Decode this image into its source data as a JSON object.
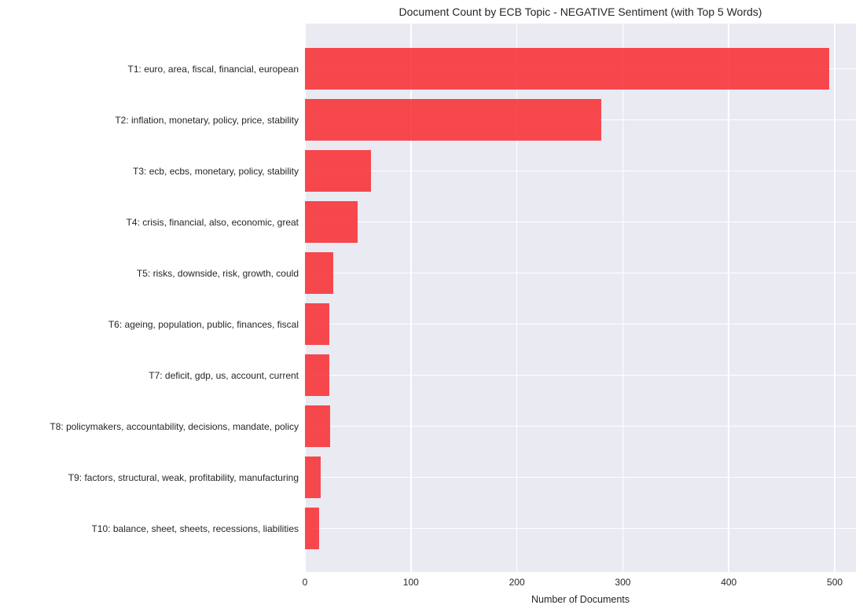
{
  "chart_data": {
    "type": "bar",
    "orientation": "horizontal",
    "title": "Document Count by ECB Topic - NEGATIVE Sentiment (with Top 5 Words)",
    "xlabel": "Number of Documents",
    "ylabel": "",
    "categories": [
      "T1: euro, area, fiscal, financial, european",
      "T2: inflation, monetary, policy, price, stability",
      "T3: ecb, ecbs, monetary, policy, stability",
      "T4: crisis, financial, also, economic, great",
      "T5: risks, downside, risk, growth, could",
      "T6: ageing, population, public, finances, fiscal",
      "T7: deficit, gdp, us, account, current",
      "T8: policymakers, accountability, decisions, mandate, policy",
      "T9: factors, structural, weak, profitability, manufacturing",
      "T10: balance, sheet, sheets, recessions, liabilities"
    ],
    "values": [
      495,
      280,
      62,
      50,
      27,
      23,
      23,
      24,
      15,
      13
    ],
    "xticks": [
      0,
      100,
      200,
      300,
      400,
      500
    ],
    "xlim": [
      0,
      520
    ],
    "grid": true,
    "legend": false,
    "style": "seaborn-darkgrid",
    "plot_bg": "#eaeaf2",
    "grid_color": "#ffffff",
    "bar_color_hex": "#f6494e",
    "bar_color_rgba": "rgba(248,42,48,0.85)",
    "text_color": "#262626"
  }
}
